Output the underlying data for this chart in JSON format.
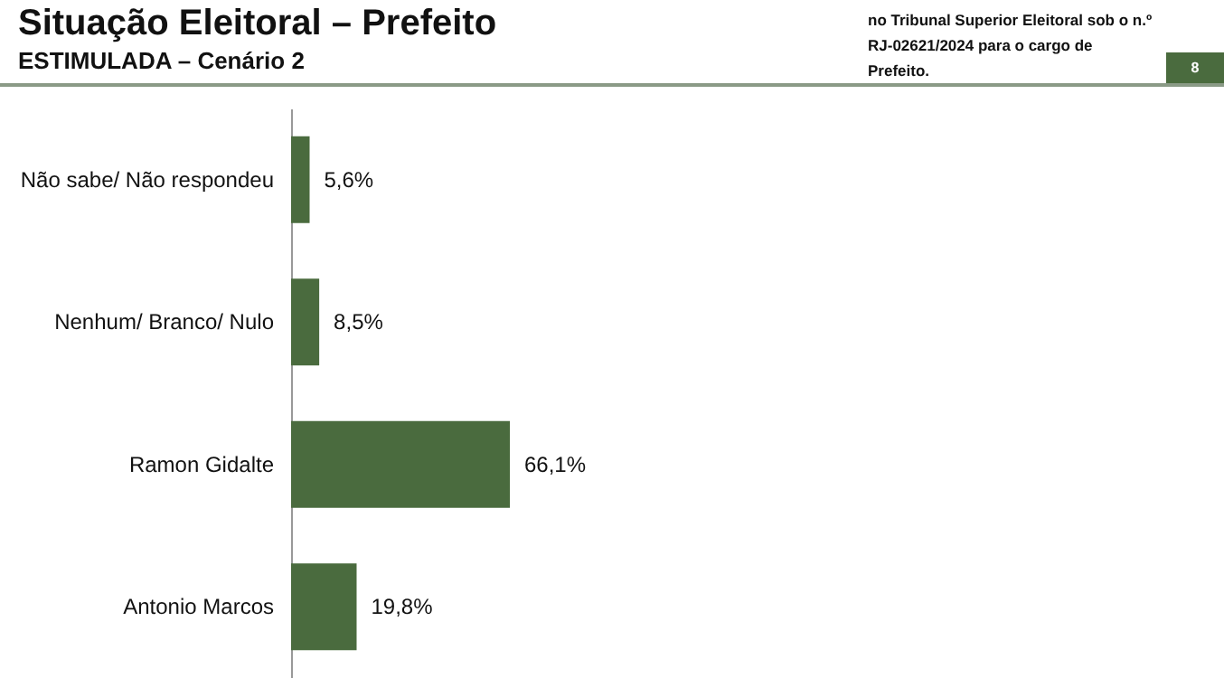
{
  "chart_data": {
    "type": "bar",
    "orientation": "horizontal",
    "title": "Situação Eleitoral – Prefeito",
    "subtitle": "ESTIMULADA – Cenário 2",
    "annotations": [
      "no Tribunal Superior Eleitoral sob o n.º RJ-02621/2024 para o cargo de Prefeito.",
      "8"
    ],
    "categories": [
      "Não sabe/ Não respondeu",
      "Nenhum/ Branco/ Nulo",
      "Ramon Gidalte",
      "Antonio Marcos"
    ],
    "values": [
      5.6,
      8.5,
      66.1,
      19.8
    ],
    "value_labels": [
      "5,6%",
      "8,5%",
      "66,1%",
      "19,8%"
    ],
    "color": "#4a6b3e"
  }
}
